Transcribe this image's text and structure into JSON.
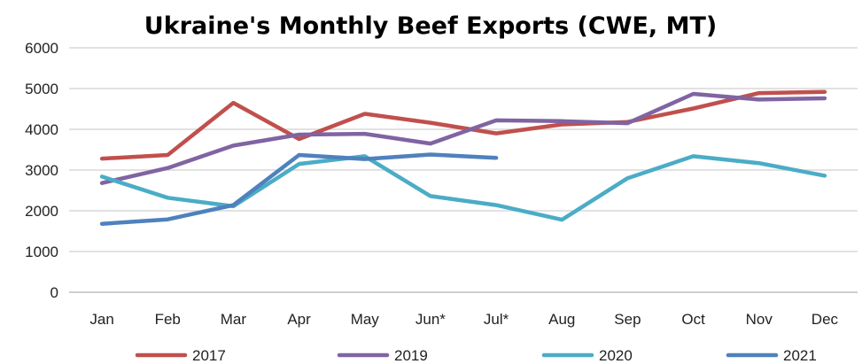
{
  "chart_data": {
    "type": "line",
    "title": "Ukraine's Monthly Beef Exports (CWE, MT)",
    "xlabel": "",
    "ylabel": "",
    "categories": [
      "Jan",
      "Feb",
      "Mar",
      "Apr",
      "May",
      "Jun*",
      "Jul*",
      "Aug",
      "Sep",
      "Oct",
      "Nov",
      "Dec"
    ],
    "ylim": [
      0,
      6000
    ],
    "yticks": [
      "0",
      "1000",
      "2000",
      "3000",
      "4000",
      "5000",
      "6000"
    ],
    "grid": true,
    "legend_position": "bottom",
    "series": [
      {
        "name": "2017",
        "color": "#C0504D",
        "values": [
          3280,
          3370,
          4650,
          3760,
          4380,
          4160,
          3900,
          4120,
          4180,
          4510,
          4890,
          4920
        ]
      },
      {
        "name": "2019",
        "color": "#8064A2",
        "values": [
          2680,
          3050,
          3600,
          3870,
          3890,
          3650,
          4220,
          4200,
          4150,
          4870,
          4730,
          4760
        ]
      },
      {
        "name": "2020",
        "color": "#4BACC6",
        "values": [
          2840,
          2320,
          2110,
          3150,
          3340,
          2360,
          2140,
          1780,
          2800,
          3340,
          3170,
          2860
        ]
      },
      {
        "name": "2021",
        "color": "#4F81BD",
        "values": [
          1680,
          1790,
          2140,
          3370,
          3270,
          3380,
          3300,
          null,
          null,
          null,
          null,
          null
        ]
      }
    ]
  }
}
